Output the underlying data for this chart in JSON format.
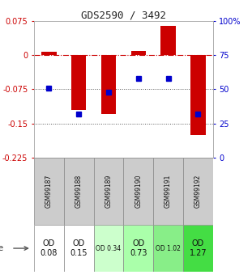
{
  "title": "GDS2590 / 3492",
  "samples": [
    "GSM99187",
    "GSM99188",
    "GSM99189",
    "GSM99190",
    "GSM99191",
    "GSM99192"
  ],
  "log2_ratios": [
    0.008,
    -0.12,
    -0.13,
    0.01,
    0.065,
    -0.175
  ],
  "percentile_ranks": [
    51,
    32,
    48,
    58,
    58,
    32
  ],
  "bar_color": "#cc0000",
  "dot_color": "#0000cc",
  "ylim_left": [
    -0.225,
    0.075
  ],
  "ylim_right": [
    0,
    100
  ],
  "yticks_left": [
    0.075,
    0,
    -0.075,
    -0.15,
    -0.225
  ],
  "yticks_right": [
    100,
    75,
    50,
    25,
    0
  ],
  "age_labels": [
    "OD\n0.08",
    "OD\n0.15",
    "OD 0.34",
    "OD\n0.73",
    "OD 1.02",
    "OD\n1.27"
  ],
  "age_colors": [
    "#ffffff",
    "#ffffff",
    "#ccffcc",
    "#aaffaa",
    "#88ee88",
    "#44dd44"
  ],
  "age_fontsize_large": [
    true,
    true,
    false,
    true,
    false,
    true
  ],
  "background_color": "#ffffff",
  "zero_line_color": "#cc0000",
  "dotted_line_color": "#555555"
}
